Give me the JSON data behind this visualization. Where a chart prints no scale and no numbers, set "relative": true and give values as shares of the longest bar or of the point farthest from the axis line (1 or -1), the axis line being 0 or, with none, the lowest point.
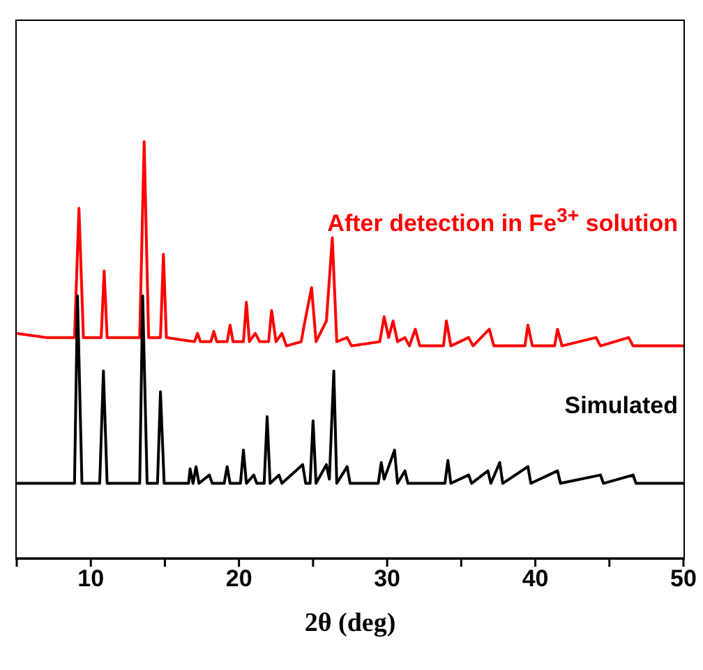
{
  "chart_data": {
    "type": "line",
    "relative": true,
    "xlabel": "2θ (deg)",
    "xlim": [
      5,
      50
    ],
    "xticks": [
      {
        "value": 5,
        "label": null
      },
      10,
      {
        "value": 15,
        "label": null
      },
      20,
      {
        "value": 25,
        "label": null
      },
      30,
      {
        "value": 35,
        "label": null
      },
      40,
      {
        "value": 45,
        "label": null
      },
      50
    ],
    "grid": false,
    "legend": false,
    "marker": "none",
    "line_style": "solid",
    "series": [
      {
        "name": "After detection in Fe$^{3+}$ solution",
        "color": "#ff0000",
        "x": [
          5,
          7,
          8.9,
          9.2,
          9.5,
          10.7,
          10.9,
          11.1,
          13.3,
          13.6,
          13.9,
          14.7,
          14.9,
          15.1,
          17.0,
          17.2,
          17.4,
          18.1,
          18.3,
          18.5,
          19.2,
          19.4,
          19.6,
          20.3,
          20.5,
          20.7,
          21.1,
          21.4,
          22.0,
          22.2,
          22.5,
          22.9,
          23.2,
          24.2,
          24.4,
          24.9,
          25.2,
          25.9,
          26.3,
          26.6,
          27.3,
          27.6,
          29.5,
          29.8,
          30.1,
          30.4,
          30.7,
          31.2,
          31.5,
          31.9,
          32.2,
          33.8,
          34.0,
          34.3,
          35.5,
          35.8,
          36.9,
          37.2,
          39.3,
          39.5,
          39.8,
          41.3,
          41.5,
          41.8,
          44.1,
          44.4,
          46.3,
          46.6,
          50
        ],
        "values": [
          0.54,
          0.53,
          0.53,
          0.84,
          0.53,
          0.53,
          0.69,
          0.53,
          0.53,
          1,
          0.53,
          0.53,
          0.73,
          0.53,
          0.52,
          0.54,
          0.52,
          0.52,
          0.545,
          0.52,
          0.52,
          0.56,
          0.52,
          0.52,
          0.615,
          0.52,
          0.54,
          0.52,
          0.52,
          0.595,
          0.52,
          0.54,
          0.51,
          0.52,
          0.56,
          0.65,
          0.52,
          0.57,
          0.77,
          0.52,
          0.53,
          0.51,
          0.52,
          0.58,
          0.53,
          0.57,
          0.52,
          0.53,
          0.51,
          0.55,
          0.51,
          0.51,
          0.57,
          0.51,
          0.53,
          0.51,
          0.55,
          0.51,
          0.51,
          0.56,
          0.51,
          0.51,
          0.55,
          0.51,
          0.53,
          0.51,
          0.53,
          0.51,
          0.51
        ]
      },
      {
        "name": "Simulated",
        "color": "#000000",
        "x": [
          5,
          8.9,
          9.1,
          9.4,
          10.6,
          10.85,
          11.1,
          13.3,
          13.5,
          13.8,
          14.5,
          14.7,
          14.95,
          16.6,
          16.7,
          16.9,
          17.1,
          17.3,
          18.0,
          18.2,
          19.0,
          19.2,
          19.4,
          20.1,
          20.3,
          20.5,
          21.0,
          21.2,
          21.7,
          21.9,
          22.1,
          22.7,
          22.9,
          24.3,
          24.5,
          24.8,
          25.0,
          25.2,
          25.9,
          26.1,
          26.4,
          26.6,
          27.3,
          27.5,
          29.4,
          29.6,
          29.8,
          30.5,
          30.7,
          31.2,
          31.4,
          33.9,
          34.1,
          34.3,
          35.5,
          35.7,
          36.8,
          37.0,
          37.6,
          37.8,
          39.5,
          39.7,
          41.5,
          41.7,
          44.4,
          44.6,
          46.6,
          46.8,
          50
        ],
        "values": [
          0.18,
          0.18,
          0.63,
          0.18,
          0.18,
          0.45,
          0.18,
          0.18,
          0.63,
          0.18,
          0.18,
          0.4,
          0.18,
          0.18,
          0.215,
          0.18,
          0.22,
          0.18,
          0.2,
          0.18,
          0.18,
          0.22,
          0.18,
          0.18,
          0.26,
          0.18,
          0.2,
          0.18,
          0.18,
          0.34,
          0.18,
          0.2,
          0.18,
          0.225,
          0.18,
          0.18,
          0.33,
          0.18,
          0.225,
          0.19,
          0.45,
          0.18,
          0.22,
          0.18,
          0.18,
          0.23,
          0.19,
          0.26,
          0.18,
          0.21,
          0.18,
          0.18,
          0.235,
          0.18,
          0.2,
          0.18,
          0.21,
          0.18,
          0.23,
          0.18,
          0.22,
          0.18,
          0.21,
          0.18,
          0.2,
          0.18,
          0.2,
          0.18,
          0.18
        ]
      }
    ]
  }
}
